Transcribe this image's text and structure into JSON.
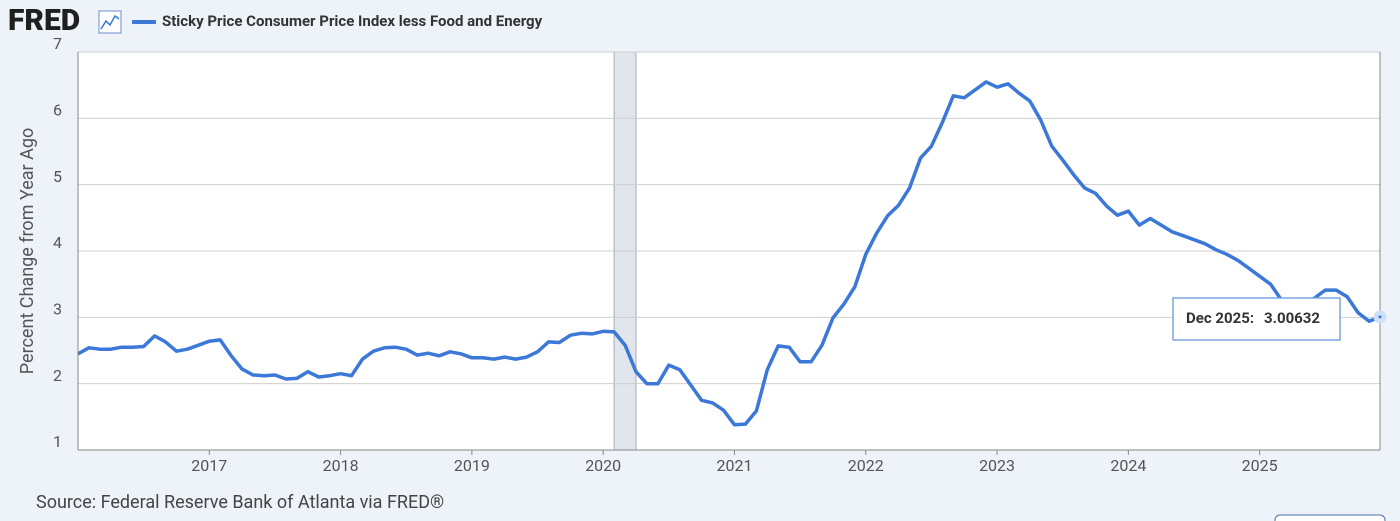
{
  "chart_data": {
    "type": "line",
    "logo": "FRED",
    "ylabel": "Percent Change from Year Ago",
    "source": "Source: Federal Reserve Bank of Atlanta via FRED®",
    "x": [
      "2016-01",
      "2016-02",
      "2016-03",
      "2016-04",
      "2016-05",
      "2016-06",
      "2016-07",
      "2016-08",
      "2016-09",
      "2016-10",
      "2016-11",
      "2016-12",
      "2017-01",
      "2017-02",
      "2017-03",
      "2017-04",
      "2017-05",
      "2017-06",
      "2017-07",
      "2017-08",
      "2017-09",
      "2017-10",
      "2017-11",
      "2017-12",
      "2018-01",
      "2018-02",
      "2018-03",
      "2018-04",
      "2018-05",
      "2018-06",
      "2018-07",
      "2018-08",
      "2018-09",
      "2018-10",
      "2018-11",
      "2018-12",
      "2019-01",
      "2019-02",
      "2019-03",
      "2019-04",
      "2019-05",
      "2019-06",
      "2019-07",
      "2019-08",
      "2019-09",
      "2019-10",
      "2019-11",
      "2019-12",
      "2020-01",
      "2020-02",
      "2020-03",
      "2020-04",
      "2020-05",
      "2020-06",
      "2020-07",
      "2020-08",
      "2020-09",
      "2020-10",
      "2020-11",
      "2020-12",
      "2021-01",
      "2021-02",
      "2021-03",
      "2021-04",
      "2021-05",
      "2021-06",
      "2021-07",
      "2021-08",
      "2021-09",
      "2021-10",
      "2021-11",
      "2021-12",
      "2022-01",
      "2022-02",
      "2022-03",
      "2022-04",
      "2022-05",
      "2022-06",
      "2022-07",
      "2022-08",
      "2022-09",
      "2022-10",
      "2022-11",
      "2022-12",
      "2023-01",
      "2023-02",
      "2023-03",
      "2023-04",
      "2023-05",
      "2023-06",
      "2023-07",
      "2023-08",
      "2023-09",
      "2023-10",
      "2023-11",
      "2023-12",
      "2024-01",
      "2024-02",
      "2024-03",
      "2024-04",
      "2024-05",
      "2024-06",
      "2024-07",
      "2024-08",
      "2024-09",
      "2024-10",
      "2024-11",
      "2024-12",
      "2025-01",
      "2025-02",
      "2025-03",
      "2025-04",
      "2025-05",
      "2025-06",
      "2025-07",
      "2025-08",
      "2025-09",
      "2025-10",
      "2025-11",
      "2025-12"
    ],
    "series": [
      {
        "name": "Sticky Price Consumer Price Index less Food and Energy",
        "color": "#3b78d8",
        "values": [
          2.45,
          2.54,
          2.52,
          2.52,
          2.55,
          2.55,
          2.56,
          2.72,
          2.63,
          2.49,
          2.52,
          2.58,
          2.64,
          2.66,
          2.42,
          2.22,
          2.13,
          2.12,
          2.13,
          2.07,
          2.08,
          2.18,
          2.1,
          2.12,
          2.15,
          2.12,
          2.37,
          2.49,
          2.54,
          2.55,
          2.52,
          2.43,
          2.46,
          2.42,
          2.48,
          2.45,
          2.39,
          2.39,
          2.37,
          2.4,
          2.37,
          2.4,
          2.48,
          2.63,
          2.62,
          2.73,
          2.76,
          2.75,
          2.79,
          2.78,
          2.58,
          2.18,
          2.0,
          2.0,
          2.28,
          2.21,
          1.98,
          1.75,
          1.71,
          1.6,
          1.38,
          1.39,
          1.59,
          2.21,
          2.57,
          2.55,
          2.33,
          2.33,
          2.58,
          2.99,
          3.2,
          3.46,
          3.95,
          4.27,
          4.53,
          4.69,
          4.95,
          5.4,
          5.58,
          5.94,
          6.34,
          6.31,
          6.43,
          6.55,
          6.47,
          6.52,
          6.38,
          6.26,
          5.97,
          5.58,
          5.37,
          5.15,
          4.95,
          4.87,
          4.68,
          4.54,
          4.6,
          4.39,
          4.49,
          4.39,
          4.29,
          4.23,
          4.17,
          4.11,
          4.02,
          3.95,
          3.86,
          3.74,
          3.62,
          3.5,
          3.26,
          3.2,
          3.2,
          3.29,
          3.41,
          3.41,
          3.31,
          3.07,
          2.94,
          3.00632
        ]
      }
    ],
    "xlim": [
      "2016-01",
      "2025-12"
    ],
    "xticks": [
      {
        "value": "2017-01",
        "label": "2017"
      },
      {
        "value": "2018-01",
        "label": "2018"
      },
      {
        "value": "2019-01",
        "label": "2019"
      },
      {
        "value": "2020-01",
        "label": "2020"
      },
      {
        "value": "2021-01",
        "label": "2021"
      },
      {
        "value": "2022-01",
        "label": "2022"
      },
      {
        "value": "2023-01",
        "label": "2023"
      },
      {
        "value": "2024-01",
        "label": "2024"
      },
      {
        "value": "2025-01",
        "label": "2025"
      }
    ],
    "ylim": [
      1,
      7
    ],
    "yticks": [
      1,
      2,
      3,
      4,
      5,
      6,
      7
    ],
    "grid": true,
    "recessions": [
      {
        "start": "2020-02",
        "end": "2020-04"
      }
    ],
    "tooltip": {
      "label": "Dec 2025:"
    }
  }
}
